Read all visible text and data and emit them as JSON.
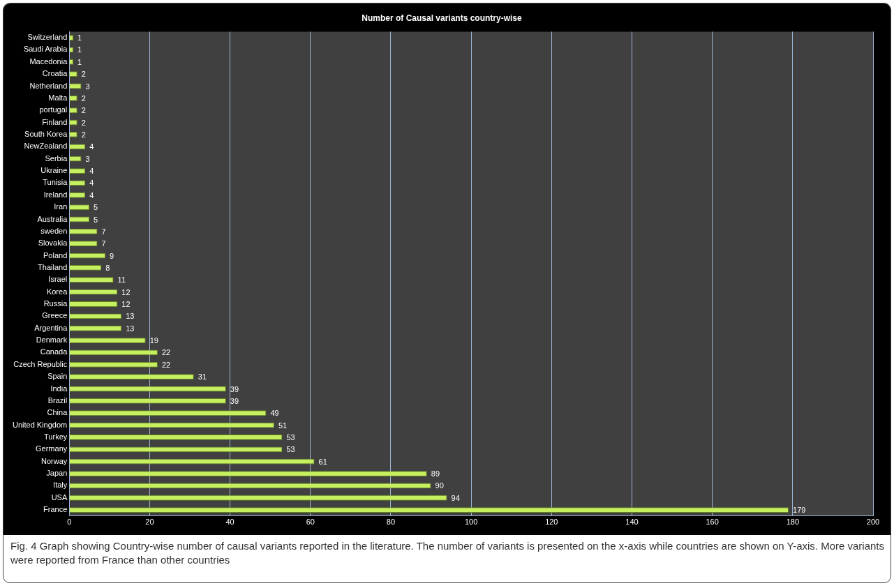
{
  "chart_data": {
    "type": "bar",
    "orientation": "horizontal",
    "title": "Number of Causal variants country-wise",
    "categories": [
      "Switzerland",
      "Saudi Arabia",
      "Macedonia",
      "Croatia",
      "Netherland",
      "Malta",
      "portugal",
      "Finland",
      "South Korea",
      "NewZealand",
      "Serbia",
      "Ukraine",
      "Tunisia",
      "Ireland",
      "Iran",
      "Australia",
      "sweden",
      "Slovakia",
      "Poland",
      "Thailand",
      "Israel",
      "Korea",
      "Russia",
      "Greece",
      "Argentina",
      "Denmark",
      "Canada",
      "Czech Republic",
      "Spain",
      "India",
      "Brazil",
      "China",
      "United Kingdom",
      "Turkey",
      "Germany",
      "Norway",
      "Japan",
      "Italy",
      "USA",
      "France"
    ],
    "values": [
      1,
      1,
      1,
      2,
      3,
      2,
      2,
      2,
      2,
      4,
      3,
      4,
      4,
      4,
      5,
      5,
      7,
      7,
      9,
      8,
      11,
      12,
      12,
      13,
      13,
      19,
      22,
      22,
      31,
      39,
      39,
      49,
      51,
      53,
      53,
      61,
      89,
      90,
      94,
      179
    ],
    "color": "#c6f060",
    "xlim": [
      0,
      200
    ],
    "xticks": [
      0,
      20,
      40,
      60,
      80,
      100,
      120,
      140,
      160,
      180,
      200
    ],
    "grid": "x",
    "legend": false,
    "data_labels": true,
    "annotations": [
      "Fig. 4 Graph showing Country-wise number of causal variants reported in the literature. The number of variants is presented on the x-axis while countries are shown on Y-axis. More variants were reported from France than other countries"
    ]
  }
}
